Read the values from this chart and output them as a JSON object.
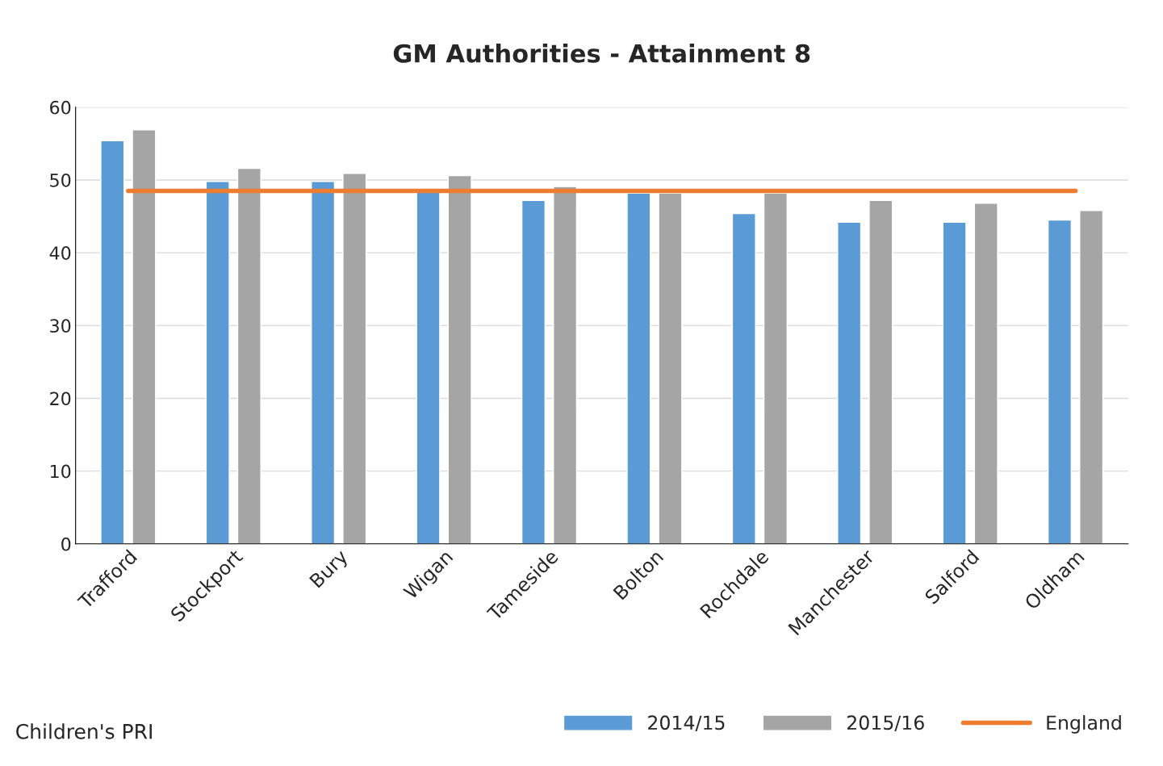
{
  "chart_data": {
    "type": "bar",
    "title": "GM Authorities - Attainment 8",
    "categories": [
      "Trafford",
      "Stockport",
      "Bury",
      "Wigan",
      "Tameside",
      "Bolton",
      "Rochdale",
      "Manchester",
      "Salford",
      "Oldham"
    ],
    "series": [
      {
        "name": "2014/15",
        "color": "#5b9bd5",
        "values": [
          55.4,
          49.8,
          49.8,
          48.3,
          47.2,
          48.2,
          45.4,
          44.2,
          44.2,
          44.5
        ]
      },
      {
        "name": "2015/16",
        "color": "#a5a5a5",
        "values": [
          56.9,
          51.6,
          50.9,
          50.6,
          49.1,
          48.2,
          48.2,
          47.2,
          46.8,
          45.8
        ]
      },
      {
        "name": "England",
        "type": "line",
        "color": "#ed7d31",
        "values": [
          48.5,
          48.5,
          48.5,
          48.5,
          48.5,
          48.5,
          48.5,
          48.5,
          48.5,
          48.5
        ]
      }
    ],
    "ylim": [
      0,
      60
    ],
    "yticks": [
      0,
      10,
      20,
      30,
      40,
      50,
      60
    ],
    "grid": "y",
    "legend": "bottom right",
    "annotations": [
      "Children's PRI"
    ]
  }
}
